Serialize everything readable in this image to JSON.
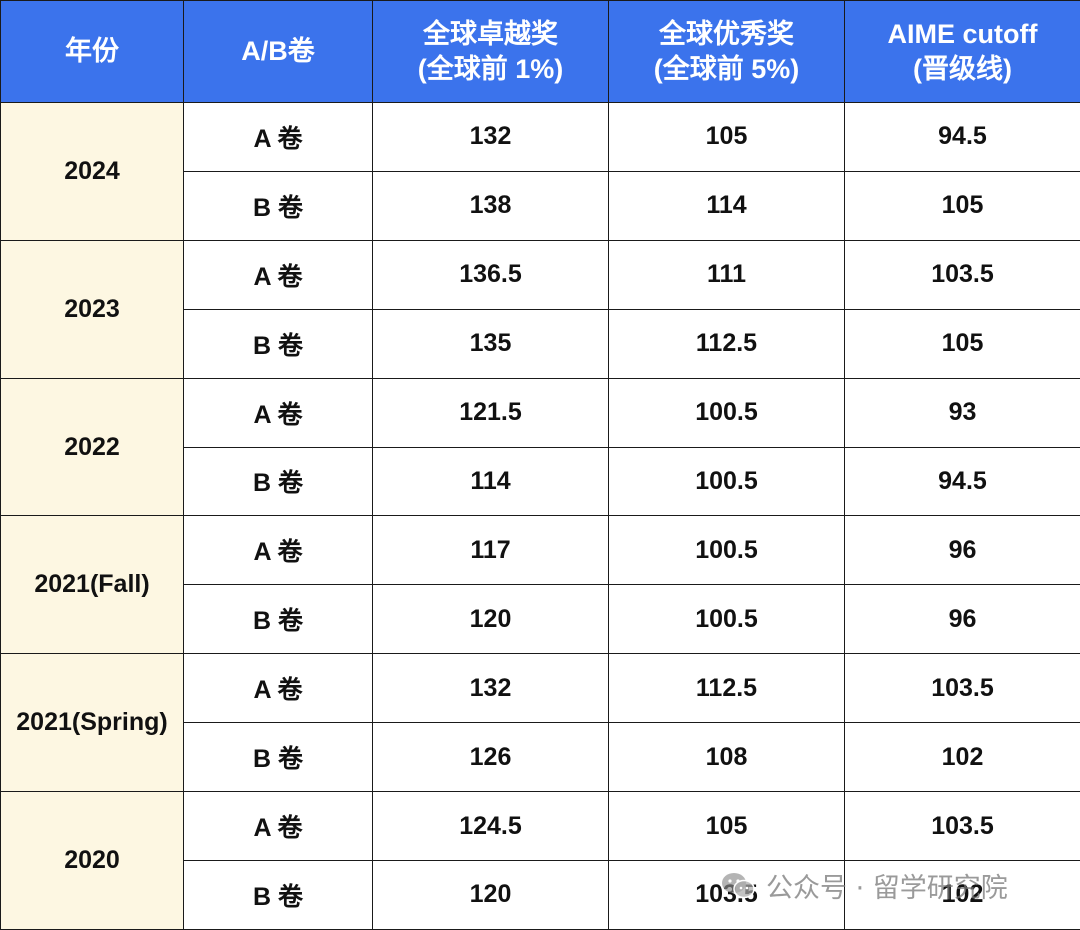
{
  "header": {
    "year": "年份",
    "paper": "A/B卷",
    "excellence_line1": "全球卓越奖",
    "excellence_line2": "(全球前 1%)",
    "merit_line1": "全球优秀奖",
    "merit_line2": "(全球前 5%)",
    "aime_line1": "AIME cutoff",
    "aime_line2": "(晋级线)"
  },
  "rows": [
    {
      "year": "2024",
      "papers": [
        {
          "paper": "A 卷",
          "excellence": "132",
          "merit": "105",
          "aime": "94.5"
        },
        {
          "paper": "B 卷",
          "excellence": "138",
          "merit": "114",
          "aime": "105"
        }
      ]
    },
    {
      "year": "2023",
      "papers": [
        {
          "paper": "A 卷",
          "excellence": "136.5",
          "merit": "111",
          "aime": "103.5"
        },
        {
          "paper": "B 卷",
          "excellence": "135",
          "merit": "112.5",
          "aime": "105"
        }
      ]
    },
    {
      "year": "2022",
      "papers": [
        {
          "paper": "A 卷",
          "excellence": "121.5",
          "merit": "100.5",
          "aime": "93"
        },
        {
          "paper": "B 卷",
          "excellence": "114",
          "merit": "100.5",
          "aime": "94.5"
        }
      ]
    },
    {
      "year": "2021(Fall)",
      "papers": [
        {
          "paper": "A 卷",
          "excellence": "117",
          "merit": "100.5",
          "aime": "96"
        },
        {
          "paper": "B 卷",
          "excellence": "120",
          "merit": "100.5",
          "aime": "96"
        }
      ]
    },
    {
      "year": "2021(Spring)",
      "papers": [
        {
          "paper": "A 卷",
          "excellence": "132",
          "merit": "112.5",
          "aime": "103.5"
        },
        {
          "paper": "B 卷",
          "excellence": "126",
          "merit": "108",
          "aime": "102"
        }
      ]
    },
    {
      "year": "2020",
      "papers": [
        {
          "paper": "A 卷",
          "excellence": "124.5",
          "merit": "105",
          "aime": "103.5"
        },
        {
          "paper": "B 卷",
          "excellence": "120",
          "merit": "103.5",
          "aime": "102"
        }
      ]
    }
  ],
  "watermark": {
    "icon": "wechat-icon",
    "text": "公众号 · 留学研究院"
  },
  "colors": {
    "header_bg": "#3b73ec",
    "header_text": "#ffffff",
    "year_cell_bg": "#fdf7e2",
    "border": "#1a1a1a"
  }
}
